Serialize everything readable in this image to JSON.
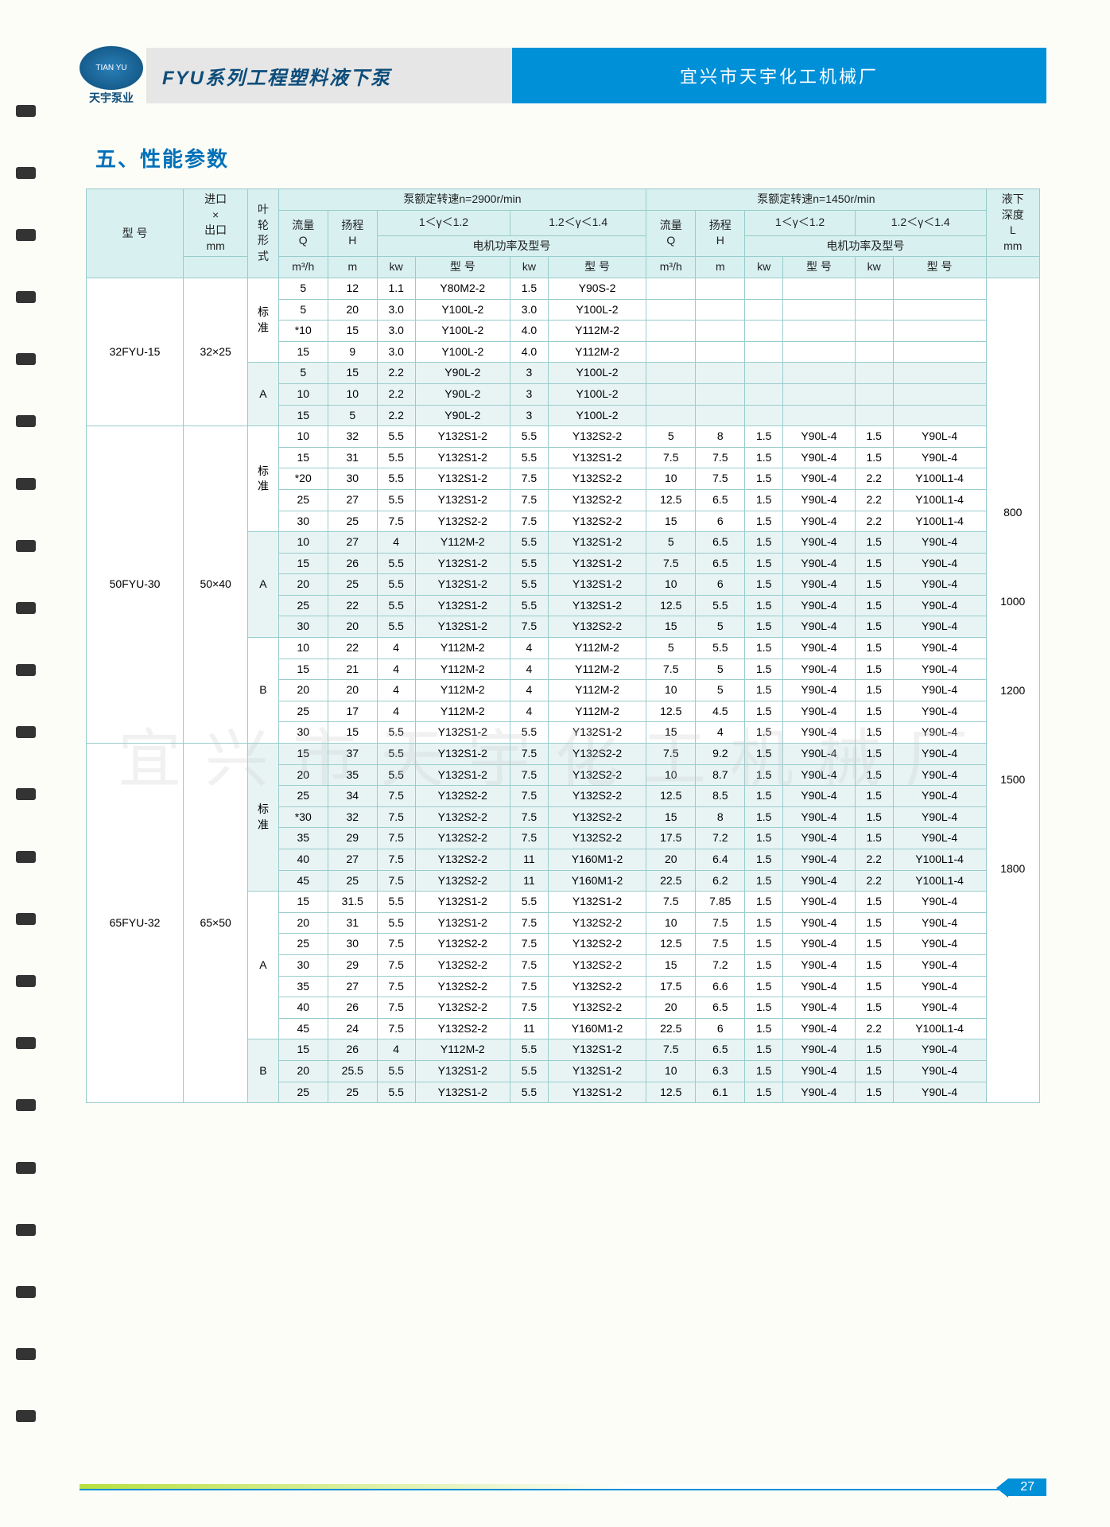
{
  "header": {
    "logo_text": "TIAN YU",
    "logo_sub": "天宇泵业",
    "title_left": "FYU系列工程塑料液下泵",
    "title_right": "宜兴市天宇化工机械厂"
  },
  "section_title": "五、性能参数",
  "watermark": "宜兴市天宇化工机械厂",
  "page_number": "27",
  "columns": {
    "model": "型 号",
    "inlet_outlet": [
      "进口",
      "×",
      "出口",
      "mm"
    ],
    "impeller": [
      "叶",
      "轮",
      "形",
      "式"
    ],
    "speed1_header": "泵额定转速n=2900r/min",
    "speed2_header": "泵额定转速n=1450r/min",
    "flow": [
      "流量",
      "Q",
      "m³/h"
    ],
    "head": [
      "扬程",
      "H",
      "m"
    ],
    "gamma1": "1＜γ＜1.2",
    "gamma2": "1.2＜γ＜1.4",
    "motor_power": "电机功率及型号",
    "kw": "kw",
    "model_col": "型  号",
    "depth": [
      "液下",
      "深度",
      "L",
      "mm"
    ]
  },
  "depth_values": [
    "800",
    "1000",
    "1200",
    "1500",
    "1800"
  ],
  "groups": [
    {
      "model": "32FYU-15",
      "io": "32×25",
      "sections": [
        {
          "imp": "标准",
          "alt": false,
          "rows": [
            [
              "5",
              "12",
              "1.1",
              "Y80M2-2",
              "1.5",
              "Y90S-2",
              "",
              "",
              "",
              "",
              "",
              ""
            ],
            [
              "5",
              "20",
              "3.0",
              "Y100L-2",
              "3.0",
              "Y100L-2",
              "",
              "",
              "",
              "",
              "",
              ""
            ],
            [
              "*10",
              "15",
              "3.0",
              "Y100L-2",
              "4.0",
              "Y112M-2",
              "",
              "",
              "",
              "",
              "",
              ""
            ],
            [
              "15",
              "9",
              "3.0",
              "Y100L-2",
              "4.0",
              "Y112M-2",
              "",
              "",
              "",
              "",
              "",
              ""
            ]
          ]
        },
        {
          "imp": "A",
          "alt": true,
          "rows": [
            [
              "5",
              "15",
              "2.2",
              "Y90L-2",
              "3",
              "Y100L-2",
              "",
              "",
              "",
              "",
              "",
              ""
            ],
            [
              "10",
              "10",
              "2.2",
              "Y90L-2",
              "3",
              "Y100L-2",
              "",
              "",
              "",
              "",
              "",
              ""
            ],
            [
              "15",
              "5",
              "2.2",
              "Y90L-2",
              "3",
              "Y100L-2",
              "",
              "",
              "",
              "",
              "",
              ""
            ]
          ]
        }
      ]
    },
    {
      "model": "50FYU-30",
      "io": "50×40",
      "sections": [
        {
          "imp": "标准",
          "alt": false,
          "rows": [
            [
              "10",
              "32",
              "5.5",
              "Y132S1-2",
              "5.5",
              "Y132S2-2",
              "5",
              "8",
              "1.5",
              "Y90L-4",
              "1.5",
              "Y90L-4"
            ],
            [
              "15",
              "31",
              "5.5",
              "Y132S1-2",
              "5.5",
              "Y132S1-2",
              "7.5",
              "7.5",
              "1.5",
              "Y90L-4",
              "1.5",
              "Y90L-4"
            ],
            [
              "*20",
              "30",
              "5.5",
              "Y132S1-2",
              "7.5",
              "Y132S2-2",
              "10",
              "7.5",
              "1.5",
              "Y90L-4",
              "2.2",
              "Y100L1-4"
            ],
            [
              "25",
              "27",
              "5.5",
              "Y132S1-2",
              "7.5",
              "Y132S2-2",
              "12.5",
              "6.5",
              "1.5",
              "Y90L-4",
              "2.2",
              "Y100L1-4"
            ],
            [
              "30",
              "25",
              "7.5",
              "Y132S2-2",
              "7.5",
              "Y132S2-2",
              "15",
              "6",
              "1.5",
              "Y90L-4",
              "2.2",
              "Y100L1-4"
            ]
          ]
        },
        {
          "imp": "A",
          "alt": true,
          "rows": [
            [
              "10",
              "27",
              "4",
              "Y112M-2",
              "5.5",
              "Y132S1-2",
              "5",
              "6.5",
              "1.5",
              "Y90L-4",
              "1.5",
              "Y90L-4"
            ],
            [
              "15",
              "26",
              "5.5",
              "Y132S1-2",
              "5.5",
              "Y132S1-2",
              "7.5",
              "6.5",
              "1.5",
              "Y90L-4",
              "1.5",
              "Y90L-4"
            ],
            [
              "20",
              "25",
              "5.5",
              "Y132S1-2",
              "5.5",
              "Y132S1-2",
              "10",
              "6",
              "1.5",
              "Y90L-4",
              "1.5",
              "Y90L-4"
            ],
            [
              "25",
              "22",
              "5.5",
              "Y132S1-2",
              "5.5",
              "Y132S1-2",
              "12.5",
              "5.5",
              "1.5",
              "Y90L-4",
              "1.5",
              "Y90L-4"
            ],
            [
              "30",
              "20",
              "5.5",
              "Y132S1-2",
              "7.5",
              "Y132S2-2",
              "15",
              "5",
              "1.5",
              "Y90L-4",
              "1.5",
              "Y90L-4"
            ]
          ]
        },
        {
          "imp": "B",
          "alt": false,
          "rows": [
            [
              "10",
              "22",
              "4",
              "Y112M-2",
              "4",
              "Y112M-2",
              "5",
              "5.5",
              "1.5",
              "Y90L-4",
              "1.5",
              "Y90L-4"
            ],
            [
              "15",
              "21",
              "4",
              "Y112M-2",
              "4",
              "Y112M-2",
              "7.5",
              "5",
              "1.5",
              "Y90L-4",
              "1.5",
              "Y90L-4"
            ],
            [
              "20",
              "20",
              "4",
              "Y112M-2",
              "4",
              "Y112M-2",
              "10",
              "5",
              "1.5",
              "Y90L-4",
              "1.5",
              "Y90L-4"
            ],
            [
              "25",
              "17",
              "4",
              "Y112M-2",
              "4",
              "Y112M-2",
              "12.5",
              "4.5",
              "1.5",
              "Y90L-4",
              "1.5",
              "Y90L-4"
            ],
            [
              "30",
              "15",
              "5.5",
              "Y132S1-2",
              "5.5",
              "Y132S1-2",
              "15",
              "4",
              "1.5",
              "Y90L-4",
              "1.5",
              "Y90L-4"
            ]
          ]
        }
      ]
    },
    {
      "model": "65FYU-32",
      "io": "65×50",
      "sections": [
        {
          "imp": "标准",
          "alt": true,
          "rows": [
            [
              "15",
              "37",
              "5.5",
              "Y132S1-2",
              "7.5",
              "Y132S2-2",
              "7.5",
              "9.2",
              "1.5",
              "Y90L-4",
              "1.5",
              "Y90L-4"
            ],
            [
              "20",
              "35",
              "5.5",
              "Y132S1-2",
              "7.5",
              "Y132S2-2",
              "10",
              "8.7",
              "1.5",
              "Y90L-4",
              "1.5",
              "Y90L-4"
            ],
            [
              "25",
              "34",
              "7.5",
              "Y132S2-2",
              "7.5",
              "Y132S2-2",
              "12.5",
              "8.5",
              "1.5",
              "Y90L-4",
              "1.5",
              "Y90L-4"
            ],
            [
              "*30",
              "32",
              "7.5",
              "Y132S2-2",
              "7.5",
              "Y132S2-2",
              "15",
              "8",
              "1.5",
              "Y90L-4",
              "1.5",
              "Y90L-4"
            ],
            [
              "35",
              "29",
              "7.5",
              "Y132S2-2",
              "7.5",
              "Y132S2-2",
              "17.5",
              "7.2",
              "1.5",
              "Y90L-4",
              "1.5",
              "Y90L-4"
            ],
            [
              "40",
              "27",
              "7.5",
              "Y132S2-2",
              "11",
              "Y160M1-2",
              "20",
              "6.4",
              "1.5",
              "Y90L-4",
              "2.2",
              "Y100L1-4"
            ],
            [
              "45",
              "25",
              "7.5",
              "Y132S2-2",
              "11",
              "Y160M1-2",
              "22.5",
              "6.2",
              "1.5",
              "Y90L-4",
              "2.2",
              "Y100L1-4"
            ]
          ]
        },
        {
          "imp": "A",
          "alt": false,
          "rows": [
            [
              "15",
              "31.5",
              "5.5",
              "Y132S1-2",
              "5.5",
              "Y132S1-2",
              "7.5",
              "7.85",
              "1.5",
              "Y90L-4",
              "1.5",
              "Y90L-4"
            ],
            [
              "20",
              "31",
              "5.5",
              "Y132S1-2",
              "7.5",
              "Y132S2-2",
              "10",
              "7.5",
              "1.5",
              "Y90L-4",
              "1.5",
              "Y90L-4"
            ],
            [
              "25",
              "30",
              "7.5",
              "Y132S2-2",
              "7.5",
              "Y132S2-2",
              "12.5",
              "7.5",
              "1.5",
              "Y90L-4",
              "1.5",
              "Y90L-4"
            ],
            [
              "30",
              "29",
              "7.5",
              "Y132S2-2",
              "7.5",
              "Y132S2-2",
              "15",
              "7.2",
              "1.5",
              "Y90L-4",
              "1.5",
              "Y90L-4"
            ],
            [
              "35",
              "27",
              "7.5",
              "Y132S2-2",
              "7.5",
              "Y132S2-2",
              "17.5",
              "6.6",
              "1.5",
              "Y90L-4",
              "1.5",
              "Y90L-4"
            ],
            [
              "40",
              "26",
              "7.5",
              "Y132S2-2",
              "7.5",
              "Y132S2-2",
              "20",
              "6.5",
              "1.5",
              "Y90L-4",
              "1.5",
              "Y90L-4"
            ],
            [
              "45",
              "24",
              "7.5",
              "Y132S2-2",
              "11",
              "Y160M1-2",
              "22.5",
              "6",
              "1.5",
              "Y90L-4",
              "2.2",
              "Y100L1-4"
            ]
          ]
        },
        {
          "imp": "B",
          "alt": true,
          "rows": [
            [
              "15",
              "26",
              "4",
              "Y112M-2",
              "5.5",
              "Y132S1-2",
              "7.5",
              "6.5",
              "1.5",
              "Y90L-4",
              "1.5",
              "Y90L-4"
            ],
            [
              "20",
              "25.5",
              "5.5",
              "Y132S1-2",
              "5.5",
              "Y132S1-2",
              "10",
              "6.3",
              "1.5",
              "Y90L-4",
              "1.5",
              "Y90L-4"
            ],
            [
              "25",
              "25",
              "5.5",
              "Y132S1-2",
              "5.5",
              "Y132S1-2",
              "12.5",
              "6.1",
              "1.5",
              "Y90L-4",
              "1.5",
              "Y90L-4"
            ]
          ]
        }
      ]
    }
  ]
}
